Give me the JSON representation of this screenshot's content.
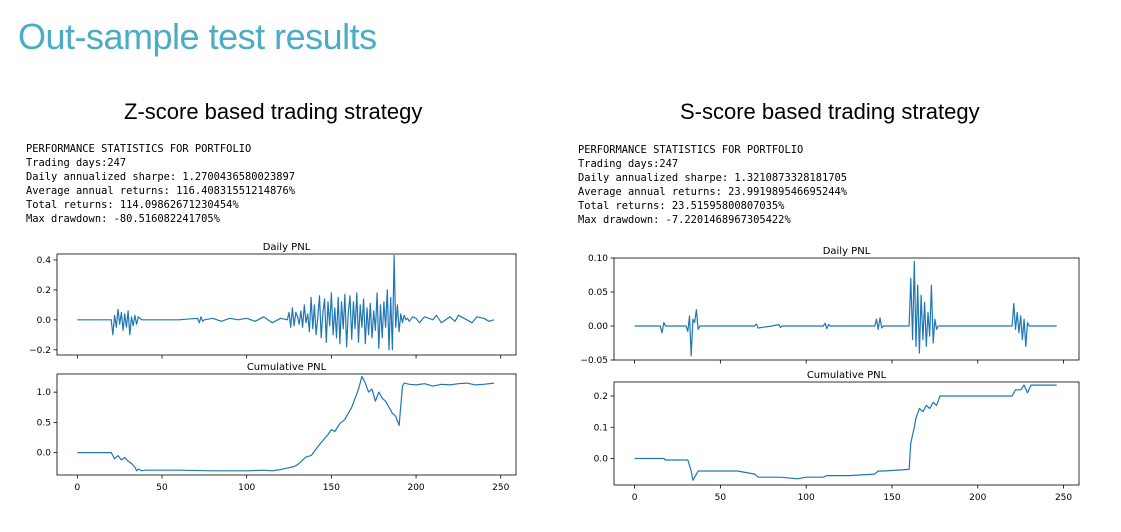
{
  "slide_title": "Out-sample test results",
  "panels": [
    {
      "title": "Z-score based trading strategy",
      "stats": [
        "PERFORMANCE STATISTICS FOR PORTFOLIO",
        "Trading days:247",
        "Daily annualized sharpe: 1.2700436580023897",
        "Average annual returns: 116.40831551214876%",
        "Total returns: 114.09862671230454%",
        "Max drawdown: -80.516082241705%"
      ]
    },
    {
      "title": "S-score based trading strategy",
      "stats": [
        "PERFORMANCE STATISTICS FOR PORTFOLIO",
        "Trading days:247",
        "Daily annualized sharpe: 1.3210873328181705",
        "Average annual returns: 23.991989546695244%",
        "Total returns: 23.51595800807035%",
        "Max drawdown: -7.2201468967305422%"
      ]
    }
  ],
  "chart_data": [
    {
      "type": "line",
      "title": "Daily PNL",
      "color": "#1f77b4",
      "xlim": [
        -12,
        259
      ],
      "ylim": [
        -0.235,
        0.44
      ],
      "yticks": [
        -0.2,
        0.0,
        0.2,
        0.4
      ],
      "ytick_labels": [
        "−0.2",
        "0.0",
        "0.2",
        "0.4"
      ],
      "xticks": [
        0,
        50,
        100,
        150,
        200,
        250
      ],
      "xtick_labels": [],
      "x": [
        0,
        20,
        21,
        22,
        23,
        24,
        25,
        26,
        27,
        28,
        29,
        30,
        31,
        32,
        33,
        34,
        35,
        36,
        37,
        38,
        40,
        60,
        71,
        72,
        73,
        74,
        75,
        80,
        85,
        90,
        95,
        100,
        105,
        110,
        115,
        120,
        124,
        125,
        126,
        127,
        128,
        129,
        130,
        131,
        132,
        133,
        134,
        135,
        136,
        137,
        138,
        139,
        140,
        141,
        142,
        143,
        144,
        145,
        146,
        147,
        148,
        149,
        150,
        151,
        152,
        153,
        154,
        155,
        156,
        157,
        158,
        159,
        160,
        161,
        162,
        163,
        164,
        165,
        166,
        167,
        168,
        169,
        170,
        171,
        172,
        173,
        174,
        175,
        176,
        177,
        178,
        179,
        180,
        181,
        182,
        183,
        184,
        185,
        186,
        187,
        188,
        189,
        190,
        191,
        192,
        193,
        194,
        195,
        196,
        198,
        200,
        202,
        205,
        210,
        212,
        215,
        220,
        223,
        225,
        230,
        233,
        236,
        240,
        243,
        246
      ],
      "y": [
        0,
        0,
        -0.1,
        0.03,
        -0.05,
        0.07,
        -0.03,
        0.05,
        -0.07,
        0.04,
        -0.05,
        0.06,
        -0.1,
        0.02,
        -0.04,
        0.03,
        -0.03,
        0.02,
        0.01,
        0,
        0,
        0,
        0.01,
        -0.02,
        0.02,
        -0.01,
        0,
        0.01,
        -0.01,
        0.01,
        0,
        0.01,
        -0.01,
        0.02,
        -0.02,
        0.01,
        0,
        0.05,
        -0.05,
        0.08,
        -0.04,
        0.05,
        0.02,
        -0.03,
        0.06,
        -0.05,
        0.1,
        -0.02,
        0.04,
        -0.08,
        0.15,
        -0.06,
        0.1,
        -0.1,
        0.02,
        0.16,
        -0.12,
        0.05,
        0.14,
        -0.15,
        0.12,
        -0.04,
        0.18,
        -0.1,
        0.08,
        -0.12,
        0.15,
        -0.16,
        0.12,
        -0.06,
        0.17,
        -0.18,
        0.05,
        0.16,
        -0.13,
        0.12,
        -0.06,
        0.18,
        -0.15,
        0.1,
        -0.05,
        0.14,
        -0.16,
        0.08,
        -0.1,
        0.11,
        -0.12,
        0.06,
        -0.07,
        0.18,
        -0.19,
        0.1,
        -0.12,
        0.12,
        -0.05,
        0.2,
        -0.2,
        0.15,
        -0.2,
        0.43,
        -0.05,
        0.1,
        -0.08,
        0.04,
        -0.02,
        0.03,
        0,
        0.01,
        -0.01,
        0.02,
        0.01,
        -0.02,
        0.02,
        0,
        0.03,
        -0.02,
        0.02,
        -0.01,
        0.03,
        0,
        -0.02,
        0.02,
        0.01,
        -0.01,
        0
      ]
    },
    {
      "type": "line",
      "title": "Cumulative PNL",
      "color": "#1f77b4",
      "xlim": [
        -12,
        259
      ],
      "ylim": [
        -0.37,
        1.3
      ],
      "yticks": [
        0.0,
        0.5,
        1.0
      ],
      "ytick_labels": [
        "0.0",
        "0.5",
        "1.0"
      ],
      "xticks": [
        0,
        50,
        100,
        150,
        200,
        250
      ],
      "xtick_labels": [
        "0",
        "50",
        "100",
        "150",
        "200",
        "250"
      ],
      "x": [
        0,
        10,
        20,
        22,
        24,
        26,
        28,
        30,
        32,
        34,
        35,
        36,
        38,
        40,
        60,
        80,
        100,
        110,
        115,
        120,
        125,
        128,
        130,
        132,
        135,
        138,
        140,
        142,
        145,
        148,
        150,
        152,
        155,
        158,
        160,
        162,
        164,
        166,
        168,
        170,
        172,
        174,
        176,
        178,
        180,
        182,
        184,
        186,
        188,
        190,
        192,
        193,
        196,
        200,
        205,
        210,
        215,
        220,
        225,
        230,
        235,
        240,
        246
      ],
      "y": [
        0,
        0,
        0,
        -0.1,
        -0.05,
        -0.12,
        -0.08,
        -0.14,
        -0.18,
        -0.24,
        -0.3,
        -0.27,
        -0.3,
        -0.29,
        -0.29,
        -0.3,
        -0.3,
        -0.29,
        -0.3,
        -0.28,
        -0.25,
        -0.23,
        -0.2,
        -0.15,
        -0.07,
        -0.05,
        0.02,
        0.1,
        0.2,
        0.3,
        0.38,
        0.35,
        0.48,
        0.55,
        0.65,
        0.75,
        0.9,
        1.05,
        1.26,
        1.15,
        1.0,
        1.05,
        0.85,
        1.0,
        0.9,
        0.85,
        0.75,
        0.65,
        0.6,
        0.45,
        1.1,
        1.15,
        1.13,
        1.12,
        1.14,
        1.1,
        1.13,
        1.12,
        1.14,
        1.15,
        1.12,
        1.13,
        1.15
      ]
    },
    {
      "type": "line",
      "title": "Daily PNL",
      "color": "#1f77b4",
      "xlim": [
        -12,
        259
      ],
      "ylim": [
        -0.05,
        0.1
      ],
      "yticks": [
        -0.05,
        0.0,
        0.05,
        0.1
      ],
      "ytick_labels": [
        "−0.05",
        "0.00",
        "0.05",
        "0.10"
      ],
      "xticks": [
        0,
        50,
        100,
        150,
        200,
        250
      ],
      "xtick_labels": [],
      "x": [
        0,
        15,
        16,
        17,
        18,
        30,
        31,
        32,
        33,
        34,
        35,
        36,
        37,
        38,
        40,
        60,
        70,
        71,
        72,
        80,
        84,
        85,
        86,
        100,
        110,
        111,
        112,
        113,
        114,
        140,
        141,
        142,
        143,
        144,
        145,
        160,
        161,
        162,
        163,
        164,
        165,
        166,
        167,
        168,
        169,
        170,
        171,
        172,
        173,
        174,
        175,
        176,
        177,
        178,
        220,
        221,
        222,
        223,
        224,
        225,
        226,
        227,
        228,
        229,
        230,
        246
      ],
      "y": [
        0,
        0,
        -0.01,
        0.005,
        0,
        0,
        -0.008,
        0.015,
        -0.044,
        0.01,
        0.005,
        0.024,
        -0.005,
        0,
        0,
        0,
        0,
        0.003,
        -0.003,
        0,
        0.002,
        -0.002,
        0,
        0,
        0,
        0.004,
        -0.004,
        0.002,
        0,
        0,
        0.01,
        -0.005,
        0.012,
        -0.003,
        0,
        0,
        0.07,
        -0.02,
        0.095,
        -0.03,
        0.06,
        -0.04,
        0.045,
        -0.02,
        0.035,
        -0.03,
        0.02,
        -0.015,
        0.06,
        -0.025,
        0.01,
        -0.005,
        0,
        0,
        0,
        0.033,
        -0.005,
        0.02,
        -0.01,
        0.015,
        -0.02,
        0.01,
        -0.03,
        0.005,
        0,
        0
      ]
    },
    {
      "type": "line",
      "title": "Cumulative PNL",
      "color": "#1f77b4",
      "xlim": [
        -12,
        259
      ],
      "ylim": [
        -0.085,
        0.245
      ],
      "yticks": [
        0.0,
        0.1,
        0.2
      ],
      "ytick_labels": [
        "0.0",
        "0.1",
        "0.2"
      ],
      "xticks": [
        0,
        50,
        100,
        150,
        200,
        250
      ],
      "xtick_labels": [
        "0",
        "50",
        "100",
        "150",
        "200",
        "250"
      ],
      "x": [
        0,
        17,
        18,
        31,
        33,
        34,
        36,
        37,
        38,
        50,
        60,
        70,
        72,
        80,
        85,
        95,
        100,
        110,
        112,
        115,
        125,
        140,
        142,
        145,
        160,
        161,
        163,
        164,
        166,
        168,
        170,
        172,
        174,
        176,
        178,
        200,
        220,
        222,
        225,
        227,
        229,
        231,
        246
      ],
      "y": [
        0,
        0,
        -0.005,
        -0.005,
        -0.04,
        -0.07,
        -0.05,
        -0.04,
        -0.04,
        -0.04,
        -0.04,
        -0.05,
        -0.06,
        -0.06,
        -0.06,
        -0.065,
        -0.06,
        -0.06,
        -0.055,
        -0.055,
        -0.055,
        -0.05,
        -0.04,
        -0.04,
        -0.035,
        0.05,
        0.1,
        0.13,
        0.16,
        0.15,
        0.17,
        0.16,
        0.18,
        0.17,
        0.2,
        0.2,
        0.2,
        0.22,
        0.22,
        0.235,
        0.21,
        0.235,
        0.235
      ]
    }
  ]
}
